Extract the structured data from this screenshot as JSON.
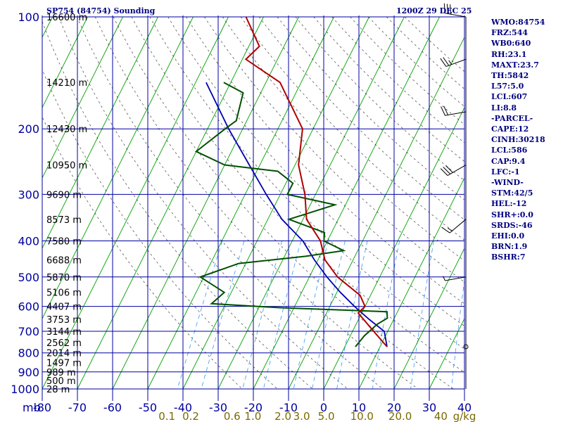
{
  "header": {
    "station": "SP754 (84754) Sounding",
    "time": "1200Z 29 DEC 25"
  },
  "stats": [
    "WMO:84754",
    "FRZ:544",
    "WB0:640",
    "RH:23.1",
    "MAXT:23.7",
    "TH:5842",
    "L57:5.0",
    "LCL:607",
    "LI:8.8",
    "-PARCEL-",
    "CAPE:12",
    "CINH:30218",
    "LCL:586",
    "CAP:9.4",
    "LFC:-1",
    "-WIND-",
    "STM:42/5",
    "HEL:-12",
    "SHR+:0.0",
    "SRDS:-46",
    "EHI:0.0",
    "BRN:1.9",
    "BSHR:7"
  ],
  "colors": {
    "grid": "#0000a0",
    "isotherm": "#00a000",
    "dry_adiabat": "#000000",
    "mixing_ratio": "#0080ff",
    "temperature": "#b00000",
    "dewpoint": "#005000",
    "parcel": "#0000b0",
    "wind": "#000000",
    "axis_text": "#0000a0",
    "mixing_text": "#7a6a00"
  },
  "chart_data": {
    "type": "skew-t",
    "xlabel": "",
    "ylabel": "mb",
    "y_axis_unit_label": "mb",
    "mixing_ratio_unit": "g/kg",
    "pressure_range": [
      100,
      1000
    ],
    "temperature_range": [
      -80,
      40
    ],
    "pressure_ticks": [
      100,
      200,
      300,
      400,
      500,
      600,
      700,
      800,
      900,
      1000
    ],
    "temperature_ticks": [
      -80,
      -70,
      -60,
      -50,
      -40,
      -30,
      -20,
      -10,
      0,
      10,
      20,
      30,
      40
    ],
    "mixing_ratio_labels": [
      "0.1",
      "0.2",
      "0.6",
      "1.0",
      "2.0",
      "3.0",
      "5.0",
      "10.0",
      "20.0",
      "40"
    ],
    "height_labels": [
      {
        "p": 100,
        "label": "16600 m"
      },
      {
        "p": 150,
        "label": "14210 m"
      },
      {
        "p": 200,
        "label": "12430 m"
      },
      {
        "p": 250,
        "label": "10950 m"
      },
      {
        "p": 300,
        "label": "9690 m"
      },
      {
        "p": 350,
        "label": "8573 m"
      },
      {
        "p": 400,
        "label": "7580 m"
      },
      {
        "p": 450,
        "label": "6688 m"
      },
      {
        "p": 500,
        "label": "5870 m"
      },
      {
        "p": 550,
        "label": "5106 m"
      },
      {
        "p": 600,
        "label": "4407 m"
      },
      {
        "p": 650,
        "label": "3753 m"
      },
      {
        "p": 700,
        "label": "3144 m"
      },
      {
        "p": 750,
        "label": "2562 m"
      },
      {
        "p": 800,
        "label": "2014 m"
      },
      {
        "p": 850,
        "label": "1497 m"
      },
      {
        "p": 900,
        "label": "989 m"
      },
      {
        "p": 950,
        "label": "500 m"
      },
      {
        "p": 1000,
        "label": "28 m"
      }
    ],
    "temperature_profile": [
      {
        "p": 100,
        "t": -75
      },
      {
        "p": 120,
        "t": -67
      },
      {
        "p": 130,
        "t": -69
      },
      {
        "p": 150,
        "t": -56
      },
      {
        "p": 200,
        "t": -43
      },
      {
        "p": 250,
        "t": -39
      },
      {
        "p": 300,
        "t": -33
      },
      {
        "p": 350,
        "t": -29
      },
      {
        "p": 400,
        "t": -22
      },
      {
        "p": 450,
        "t": -18
      },
      {
        "p": 500,
        "t": -12
      },
      {
        "p": 560,
        "t": -3
      },
      {
        "p": 600,
        "t": 0
      },
      {
        "p": 625,
        "t": -1
      },
      {
        "p": 700,
        "t": 6
      },
      {
        "p": 770,
        "t": 12
      }
    ],
    "dewpoint_profile": [
      {
        "p": 150,
        "t": -72
      },
      {
        "p": 160,
        "t": -65
      },
      {
        "p": 190,
        "t": -63
      },
      {
        "p": 200,
        "t": -65
      },
      {
        "p": 230,
        "t": -70
      },
      {
        "p": 250,
        "t": -60
      },
      {
        "p": 260,
        "t": -44
      },
      {
        "p": 280,
        "t": -38
      },
      {
        "p": 300,
        "t": -38
      },
      {
        "p": 320,
        "t": -23
      },
      {
        "p": 350,
        "t": -34
      },
      {
        "p": 380,
        "t": -22
      },
      {
        "p": 400,
        "t": -21
      },
      {
        "p": 425,
        "t": -14
      },
      {
        "p": 440,
        "t": -24
      },
      {
        "p": 460,
        "t": -42
      },
      {
        "p": 500,
        "t": -51
      },
      {
        "p": 550,
        "t": -42
      },
      {
        "p": 590,
        "t": -44
      },
      {
        "p": 605,
        "t": -24
      },
      {
        "p": 620,
        "t": 7
      },
      {
        "p": 645,
        "t": 8
      },
      {
        "p": 670,
        "t": 6
      },
      {
        "p": 720,
        "t": 4
      },
      {
        "p": 770,
        "t": 3
      }
    ],
    "parcel_profile": [
      {
        "p": 150,
        "t": -77
      },
      {
        "p": 200,
        "t": -64
      },
      {
        "p": 250,
        "t": -53
      },
      {
        "p": 300,
        "t": -44
      },
      {
        "p": 350,
        "t": -36
      },
      {
        "p": 400,
        "t": -27
      },
      {
        "p": 450,
        "t": -21
      },
      {
        "p": 500,
        "t": -15
      },
      {
        "p": 550,
        "t": -9
      },
      {
        "p": 600,
        "t": -3
      },
      {
        "p": 650,
        "t": 3
      },
      {
        "p": 700,
        "t": 9
      },
      {
        "p": 770,
        "t": 12
      }
    ],
    "winds": [
      {
        "p": 100,
        "dir": 280,
        "spd": 30
      },
      {
        "p": 130,
        "dir": 250,
        "spd": 25
      },
      {
        "p": 180,
        "dir": 260,
        "spd": 20
      },
      {
        "p": 250,
        "dir": 240,
        "spd": 30
      },
      {
        "p": 350,
        "dir": 230,
        "spd": 15
      },
      {
        "p": 500,
        "dir": 260,
        "spd": 5
      },
      {
        "p": 770,
        "dir": 0,
        "spd": 0
      }
    ]
  }
}
